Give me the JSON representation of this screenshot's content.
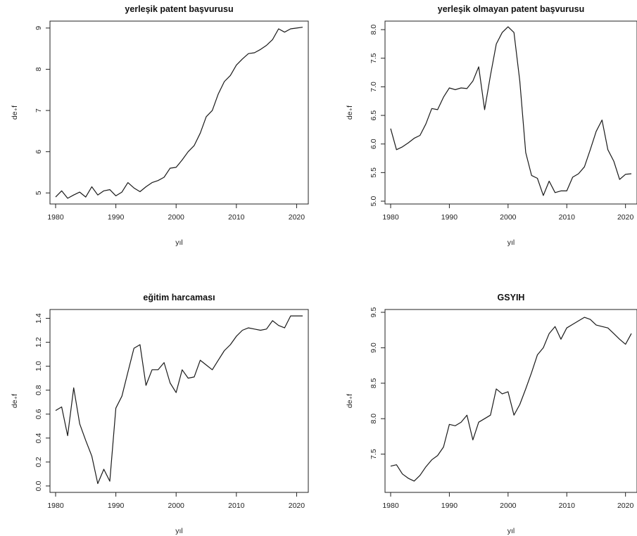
{
  "chart_data": [
    {
      "type": "line",
      "title": "yerleşik patent başvurusu",
      "xlabel": "yıl",
      "ylabel": "de₊f",
      "xlim": [
        1980,
        2021
      ],
      "ylim": [
        4.8,
        9.1
      ],
      "xticks": [
        1980,
        1990,
        2000,
        2010,
        2020
      ],
      "yticks": [
        5,
        6,
        7,
        8,
        9
      ],
      "x": [
        1980,
        1981,
        1982,
        1983,
        1984,
        1985,
        1986,
        1987,
        1988,
        1989,
        1990,
        1991,
        1992,
        1993,
        1994,
        1995,
        1996,
        1997,
        1998,
        1999,
        2000,
        2001,
        2002,
        2003,
        2004,
        2005,
        2006,
        2007,
        2008,
        2009,
        2010,
        2011,
        2012,
        2013,
        2014,
        2015,
        2016,
        2017,
        2018,
        2019,
        2020,
        2021
      ],
      "values": [
        4.9,
        5.05,
        4.87,
        4.95,
        5.02,
        4.9,
        5.15,
        4.95,
        5.05,
        5.08,
        4.93,
        5.02,
        5.25,
        5.12,
        5.03,
        5.15,
        5.25,
        5.3,
        5.38,
        5.6,
        5.62,
        5.8,
        6.0,
        6.15,
        6.45,
        6.85,
        7.0,
        7.4,
        7.7,
        7.85,
        8.1,
        8.25,
        8.38,
        8.4,
        8.48,
        8.58,
        8.72,
        8.98,
        8.9,
        8.98,
        9.0,
        9.02
      ]
    },
    {
      "type": "line",
      "title": "yerleşik olmayan patent başvurusu",
      "xlabel": "yıl",
      "ylabel": "de₊f",
      "xlim": [
        1980,
        2021
      ],
      "ylim": [
        5.0,
        8.1
      ],
      "xticks": [
        1980,
        1990,
        2000,
        2010,
        2020
      ],
      "yticks": [
        "5.0",
        "5.5",
        "6.0",
        "6.5",
        "7.0",
        "7.5",
        "8.0"
      ],
      "x": [
        1980,
        1981,
        1982,
        1983,
        1984,
        1985,
        1986,
        1987,
        1988,
        1989,
        1990,
        1991,
        1992,
        1993,
        1994,
        1995,
        1996,
        1997,
        1998,
        1999,
        2000,
        2001,
        2002,
        2003,
        2004,
        2005,
        2006,
        2007,
        2008,
        2009,
        2010,
        2011,
        2012,
        2013,
        2014,
        2015,
        2016,
        2017,
        2018,
        2019,
        2020,
        2021
      ],
      "values": [
        6.27,
        5.9,
        5.95,
        6.02,
        6.1,
        6.15,
        6.35,
        6.62,
        6.6,
        6.82,
        6.98,
        6.95,
        6.98,
        6.97,
        7.1,
        7.35,
        6.6,
        7.2,
        7.75,
        7.95,
        8.05,
        7.95,
        7.1,
        5.85,
        5.45,
        5.4,
        5.1,
        5.35,
        5.15,
        5.18,
        5.18,
        5.42,
        5.48,
        5.6,
        5.9,
        6.22,
        6.42,
        5.9,
        5.7,
        5.38,
        5.47,
        5.48
      ]
    },
    {
      "type": "line",
      "title": "eğitim harcaması",
      "xlabel": "yıl",
      "ylabel": "de₊f",
      "xlim": [
        1980,
        2021
      ],
      "ylim": [
        -0.03,
        1.45
      ],
      "xticks": [
        1980,
        1990,
        2000,
        2010,
        2020
      ],
      "yticks": [
        "0.0",
        "0.2",
        "0.4",
        "0.6",
        "0.8",
        "1.0",
        "1.2",
        "1.4"
      ],
      "x": [
        1980,
        1981,
        1982,
        1983,
        1984,
        1985,
        1986,
        1987,
        1988,
        1989,
        1990,
        1991,
        1992,
        1993,
        1994,
        1995,
        1996,
        1997,
        1998,
        1999,
        2000,
        2001,
        2002,
        2003,
        2004,
        2005,
        2006,
        2007,
        2008,
        2009,
        2010,
        2011,
        2012,
        2013,
        2014,
        2015,
        2016,
        2017,
        2018,
        2019,
        2020,
        2021
      ],
      "values": [
        0.63,
        0.66,
        0.42,
        0.82,
        0.52,
        0.38,
        0.25,
        0.02,
        0.14,
        0.04,
        0.65,
        0.75,
        0.95,
        1.15,
        1.18,
        0.84,
        0.97,
        0.97,
        1.03,
        0.86,
        0.78,
        0.97,
        0.9,
        0.91,
        1.05,
        1.01,
        0.97,
        1.05,
        1.13,
        1.18,
        1.25,
        1.3,
        1.32,
        1.31,
        1.3,
        1.31,
        1.38,
        1.34,
        1.32,
        1.42,
        1.42,
        1.42
      ]
    },
    {
      "type": "line",
      "title": "GSYIH",
      "xlabel": "yıl",
      "ylabel": "de₊f",
      "xlim": [
        1980,
        2021
      ],
      "ylim": [
        7.0,
        9.5
      ],
      "xticks": [
        1980,
        1990,
        2000,
        2010,
        2020
      ],
      "yticks": [
        "7.5",
        "8.0",
        "8.5",
        "9.0",
        "9.5"
      ],
      "x": [
        1980,
        1981,
        1982,
        1983,
        1984,
        1985,
        1986,
        1987,
        1988,
        1989,
        1990,
        1991,
        1992,
        1993,
        1994,
        1995,
        1996,
        1997,
        1998,
        1999,
        2000,
        2001,
        2002,
        2003,
        2004,
        2005,
        2006,
        2007,
        2008,
        2009,
        2010,
        2011,
        2012,
        2013,
        2014,
        2015,
        2016,
        2017,
        2018,
        2019,
        2020,
        2021
      ],
      "values": [
        7.33,
        7.35,
        7.22,
        7.16,
        7.12,
        7.2,
        7.32,
        7.42,
        7.48,
        7.6,
        7.92,
        7.9,
        7.95,
        8.05,
        7.7,
        7.95,
        8.0,
        8.05,
        8.42,
        8.35,
        8.38,
        8.05,
        8.2,
        8.42,
        8.65,
        8.9,
        9.0,
        9.2,
        9.3,
        9.12,
        9.28,
        9.33,
        9.38,
        9.43,
        9.4,
        9.32,
        9.3,
        9.28,
        9.2,
        9.12,
        9.05,
        9.2
      ]
    }
  ]
}
